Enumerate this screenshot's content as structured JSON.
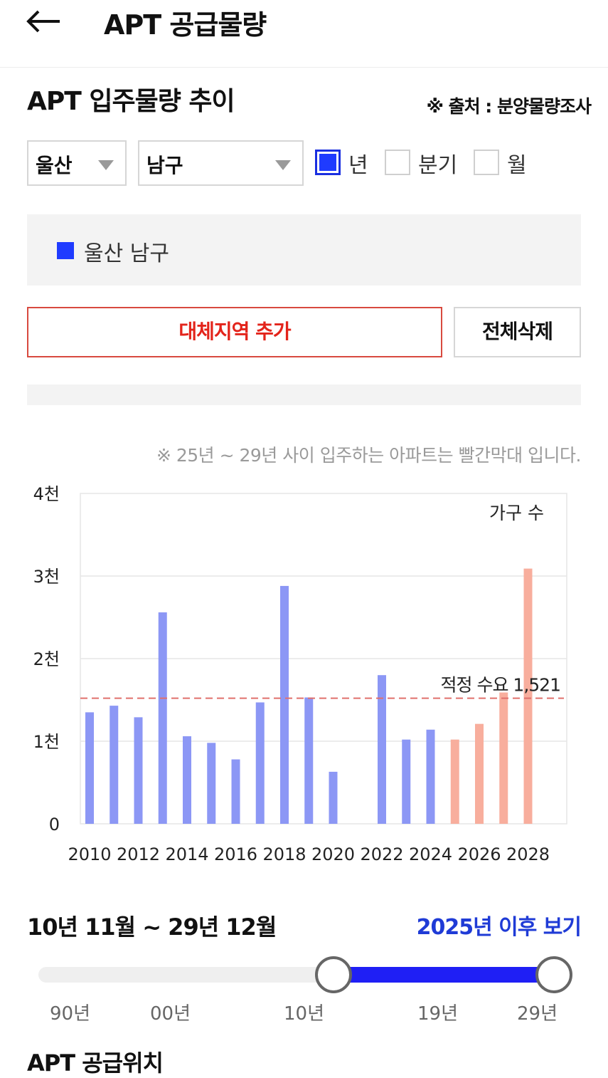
{
  "header": {
    "title": "APT 공급물량"
  },
  "section": {
    "title": "APT 입주물량 추이",
    "source": "※ 출처 : 분양물량조사"
  },
  "filters": {
    "region": "울산",
    "district": "남구",
    "periods": [
      {
        "label": "년",
        "checked": true
      },
      {
        "label": "분기",
        "checked": false
      },
      {
        "label": "월",
        "checked": false
      }
    ]
  },
  "legend": {
    "label": "울산 남구",
    "color": "#1f3bff"
  },
  "buttons": {
    "add": "대체지역 추가",
    "delete_all": "전체삭제"
  },
  "note": "※ 25년 ~ 29년 사이 입주하는 아파트는 빨간막대 입니다.",
  "chart_data": {
    "type": "bar",
    "title": "",
    "ylabel": "가구 수",
    "ylim": [
      0,
      4000
    ],
    "ytick_labels": [
      "0",
      "1천",
      "2천",
      "3천",
      "4천"
    ],
    "x_tick_labels": [
      "2010",
      "2012",
      "2014",
      "2016",
      "2018",
      "2020",
      "2022",
      "2024",
      "2026",
      "2028"
    ],
    "categories": [
      2010,
      2011,
      2012,
      2013,
      2014,
      2015,
      2016,
      2017,
      2018,
      2019,
      2020,
      2021,
      2022,
      2023,
      2024,
      2025,
      2026,
      2027,
      2028
    ],
    "values": [
      1350,
      1430,
      1290,
      2560,
      1060,
      980,
      780,
      1470,
      2880,
      1530,
      630,
      0,
      1800,
      1020,
      1140,
      1020,
      1210,
      1590,
      3090
    ],
    "colors": {
      "actual": "#8c97f5",
      "forecast": "#f8ae9d",
      "reference": "#e0706c"
    },
    "forecast_from": 2025,
    "reference_line": {
      "value": 1521,
      "label": "적정 수요 1,521"
    },
    "grid": true
  },
  "range": {
    "text": "10년 11월 ~ 29년 12월",
    "link": "2025년 이후 보기",
    "start_label": "10년",
    "end_label": "29년"
  },
  "slider_labels": [
    "90년",
    "00년",
    "10년",
    "19년",
    "29년"
  ],
  "bottom": {
    "title": "APT 공급위치"
  }
}
